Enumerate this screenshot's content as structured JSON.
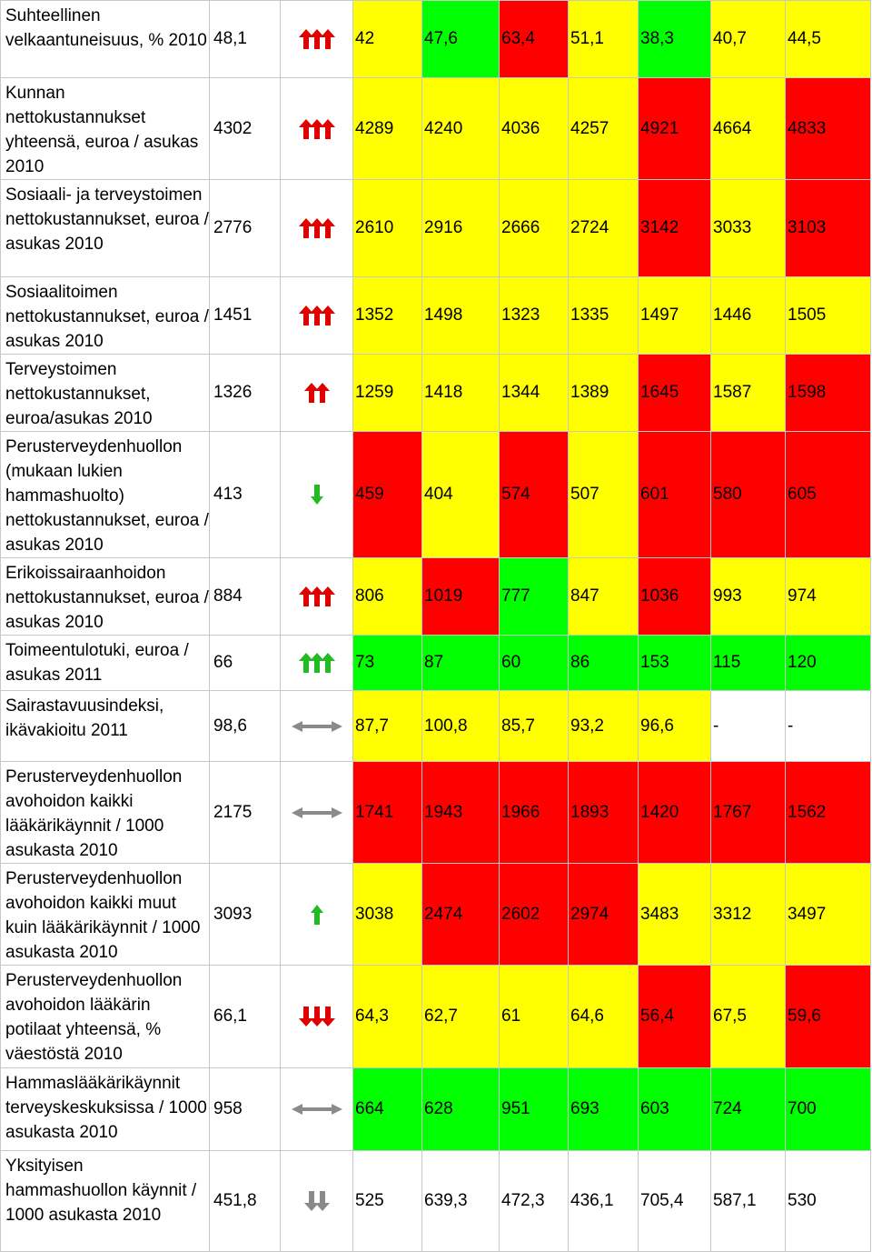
{
  "colors": {
    "green": "#00ff00",
    "yellow": "#ffff00",
    "red": "#ff0000",
    "white": "#ffffff",
    "arrow_red": "#e00000",
    "arrow_green": "#22bb22",
    "arrow_gray": "#8a8a8a"
  },
  "rows": [
    {
      "label": "Suhteellinen velkaantuneisuus, % 2010",
      "ref": "48,1",
      "indicator": {
        "icon": "triple-up-arrow-icon",
        "color": "red"
      },
      "values": [
        "42",
        "47,6",
        "63,4",
        "51,1",
        "38,3",
        "40,7",
        "44,5"
      ],
      "cell_colors": [
        "y",
        "g",
        "r",
        "y",
        "g",
        "y",
        "y"
      ]
    },
    {
      "label": "Kunnan nettokustannukset yhteensä, euroa / asukas 2010",
      "ref": "4302",
      "indicator": {
        "icon": "triple-up-arrow-icon",
        "color": "red"
      },
      "values": [
        "4289",
        "4240",
        "4036",
        "4257",
        "4921",
        "4664",
        "4833"
      ],
      "cell_colors": [
        "y",
        "y",
        "y",
        "y",
        "r",
        "y",
        "r"
      ]
    },
    {
      "label": "Sosiaali- ja terveystoimen nettokustannukset, euroa / asukas 2010",
      "ref": "2776",
      "indicator": {
        "icon": "triple-up-arrow-icon",
        "color": "red"
      },
      "values": [
        "2610",
        "2916",
        "2666",
        "2724",
        "3142",
        "3033",
        "3103"
      ],
      "cell_colors": [
        "y",
        "y",
        "y",
        "y",
        "r",
        "y",
        "r"
      ]
    },
    {
      "label": "Sosiaalitoimen nettokustannukset, euroa / asukas 2010",
      "ref": "1451",
      "indicator": {
        "icon": "triple-up-arrow-icon",
        "color": "red"
      },
      "values": [
        "1352",
        "1498",
        "1323",
        "1335",
        "1497",
        "1446",
        "1505"
      ],
      "cell_colors": [
        "y",
        "y",
        "y",
        "y",
        "y",
        "y",
        "y"
      ]
    },
    {
      "label": "Terveystoimen nettokustannukset, euroa/asukas 2010",
      "ref": "1326",
      "indicator": {
        "icon": "double-up-arrow-icon",
        "color": "red"
      },
      "values": [
        "1259",
        "1418",
        "1344",
        "1389",
        "1645",
        "1587",
        "1598"
      ],
      "cell_colors": [
        "y",
        "y",
        "y",
        "y",
        "r",
        "y",
        "r"
      ]
    },
    {
      "label": "Perusterveydenhuollon (mukaan lukien hammashuolto) nettokustannukset, euroa / asukas 2010",
      "ref": "413",
      "indicator": {
        "icon": "single-down-arrow-icon",
        "color": "green"
      },
      "values": [
        "459",
        "404",
        "574",
        "507",
        "601",
        "580",
        "605"
      ],
      "cell_colors": [
        "r",
        "y",
        "r",
        "y",
        "r",
        "r",
        "r"
      ]
    },
    {
      "label": "Erikoissairaanhoidon nettokustannukset, euroa / asukas 2010",
      "ref": "884",
      "indicator": {
        "icon": "triple-up-arrow-icon",
        "color": "red"
      },
      "values": [
        "806",
        "1019",
        "777",
        "847",
        "1036",
        "993",
        "974"
      ],
      "cell_colors": [
        "y",
        "r",
        "g",
        "y",
        "r",
        "y",
        "y"
      ]
    },
    {
      "label": "Toimeentulotuki, euroa / asukas 2011",
      "ref": "66",
      "indicator": {
        "icon": "triple-up-arrow-icon",
        "color": "green"
      },
      "values": [
        "73",
        "87",
        "60",
        "86",
        "153",
        "115",
        "120"
      ],
      "cell_colors": [
        "g",
        "g",
        "g",
        "g",
        "g",
        "g",
        "g"
      ]
    },
    {
      "label": "Sairastavuusindeksi, ikävakioitu 2011",
      "ref": "98,6",
      "indicator": {
        "icon": "left-right-arrow-icon",
        "color": "gray"
      },
      "values": [
        "87,7",
        "100,8",
        "85,7",
        "93,2",
        "96,6",
        "-",
        "-"
      ],
      "cell_colors": [
        "y",
        "y",
        "y",
        "y",
        "y",
        "w",
        "w"
      ]
    },
    {
      "label": "Perusterveydenhuollon avohoidon kaikki lääkärikäynnit / 1000 asukasta 2010",
      "ref": "2175",
      "indicator": {
        "icon": "left-right-arrow-icon",
        "color": "gray"
      },
      "values": [
        "1741",
        "1943",
        "1966",
        "1893",
        "1420",
        "1767",
        "1562"
      ],
      "cell_colors": [
        "r",
        "r",
        "r",
        "r",
        "r",
        "r",
        "r"
      ]
    },
    {
      "label": "Perusterveydenhuollon avohoidon kaikki muut kuin lääkärikäynnit / 1000 asukasta 2010",
      "ref": "3093",
      "indicator": {
        "icon": "single-up-arrow-icon",
        "color": "green"
      },
      "values": [
        "3038",
        "2474",
        "2602",
        "2974",
        "3483",
        "3312",
        "3497"
      ],
      "cell_colors": [
        "y",
        "r",
        "r",
        "r",
        "y",
        "y",
        "y"
      ]
    },
    {
      "label": "Perusterveydenhuollon avohoidon lääkärin potilaat yhteensä, % väestöstä 2010",
      "ref": "66,1",
      "indicator": {
        "icon": "triple-down-arrow-icon",
        "color": "red"
      },
      "values": [
        "64,3",
        "62,7",
        "61",
        "64,6",
        "56,4",
        "67,5",
        "59,6"
      ],
      "cell_colors": [
        "y",
        "y",
        "y",
        "y",
        "r",
        "y",
        "r"
      ]
    },
    {
      "label": "Hammaslääkärikäynnit terveyskeskuksissa / 1000 asukasta 2010",
      "ref": "958",
      "indicator": {
        "icon": "left-right-arrow-icon",
        "color": "gray"
      },
      "values": [
        "664",
        "628",
        "951",
        "693",
        "603",
        "724",
        "700"
      ],
      "cell_colors": [
        "g",
        "g",
        "g",
        "g",
        "g",
        "g",
        "g"
      ]
    },
    {
      "label": "Yksityisen hammashuollon käynnit / 1000 asukasta 2010",
      "ref": "451,8",
      "indicator": {
        "icon": "double-down-arrow-icon",
        "color": "gray"
      },
      "values": [
        "525",
        "639,3",
        "472,3",
        "436,1",
        "705,4",
        "587,1",
        "530"
      ],
      "cell_colors": [
        "w",
        "w",
        "w",
        "w",
        "w",
        "w",
        "w"
      ]
    }
  ]
}
